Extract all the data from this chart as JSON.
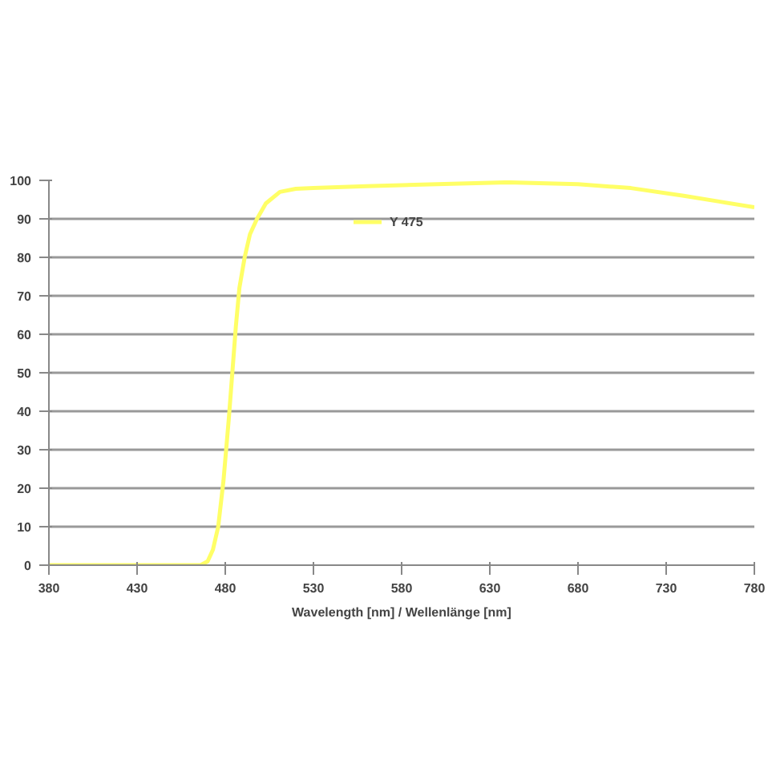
{
  "chart_data": {
    "type": "line",
    "xlabel": "Wavelength [nm] / Wellenlänge [nm]",
    "x": [
      380,
      430,
      460,
      466,
      470,
      473,
      476,
      479,
      482,
      484,
      486,
      488,
      491,
      494,
      498,
      503,
      511,
      520,
      530,
      560,
      600,
      640,
      680,
      710,
      740,
      760,
      780
    ],
    "series": [
      {
        "name": "Y 475",
        "color": "#ffff66",
        "values": [
          0,
          0,
          0,
          0,
          1,
          4,
          10,
          22,
          38,
          50,
          62,
          72,
          80,
          86,
          90,
          94,
          97,
          97.8,
          98,
          98.5,
          99,
          99.5,
          99,
          98,
          96,
          94.5,
          93
        ]
      }
    ],
    "xlim": [
      380,
      780
    ],
    "ylim": [
      0,
      100
    ],
    "xticks": [
      380,
      430,
      480,
      530,
      580,
      630,
      680,
      730,
      780
    ],
    "yticks": [
      0,
      10,
      20,
      30,
      40,
      50,
      60,
      70,
      80,
      90,
      100
    ],
    "grid": "y",
    "legend": "top",
    "marker": "none",
    "line_style": "solid"
  }
}
